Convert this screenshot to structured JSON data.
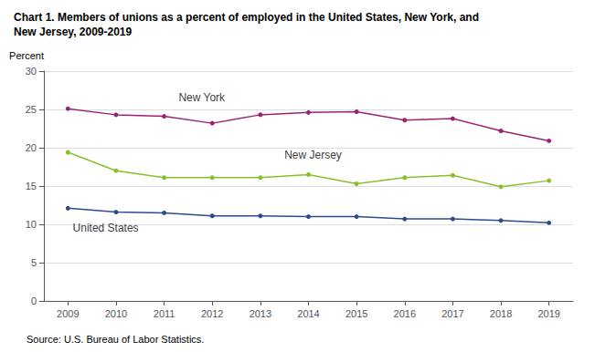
{
  "chart_data": {
    "type": "line",
    "title": "Chart 1. Members of unions as a percent of employed in the United States, New York, and\nNew Jersey, 2009-2019",
    "ylabel": "Percent",
    "source": "Source: U.S. Bureau of Labor Statistics.",
    "x": [
      2009,
      2010,
      2011,
      2012,
      2013,
      2014,
      2015,
      2016,
      2017,
      2018,
      2019
    ],
    "series": [
      {
        "name": "New York",
        "color": "#9B2472",
        "marker": "circle",
        "values": [
          25.1,
          24.3,
          24.1,
          23.2,
          24.3,
          24.6,
          24.7,
          23.6,
          23.8,
          22.2,
          20.9
        ]
      },
      {
        "name": "New Jersey",
        "color": "#8BBF2A",
        "marker": "circle",
        "values": [
          19.4,
          17.0,
          16.1,
          16.1,
          16.1,
          16.5,
          15.3,
          16.1,
          16.4,
          14.9,
          15.7
        ]
      },
      {
        "name": "United States",
        "color": "#2E4B8F",
        "marker": "circle",
        "values": [
          12.1,
          11.6,
          11.5,
          11.1,
          11.1,
          11.0,
          11.0,
          10.7,
          10.7,
          10.5,
          10.2
        ]
      }
    ],
    "annotations": [
      {
        "text": "New York",
        "x": 2011.3,
        "y": 25.8
      },
      {
        "text": "New Jersey",
        "x": 2013.5,
        "y": 18.3
      },
      {
        "text": "United States",
        "x": 2009.1,
        "y": 8.8
      }
    ],
    "xlim": [
      2008.5,
      2019.5
    ],
    "xticks": [
      2009,
      2010,
      2011,
      2012,
      2013,
      2014,
      2015,
      2016,
      2017,
      2018,
      2019
    ],
    "ylim": [
      0,
      30
    ],
    "yticks": [
      0,
      5,
      10,
      15,
      20,
      25,
      30
    ],
    "grid": true
  }
}
